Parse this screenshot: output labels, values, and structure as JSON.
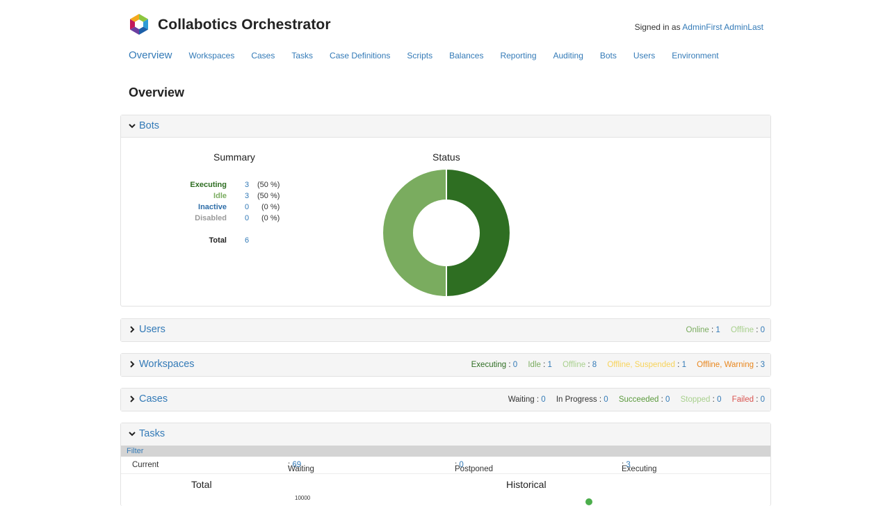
{
  "header": {
    "app_title": "Collabotics Orchestrator",
    "signed_in_prefix": "Signed in as",
    "user_name": "AdminFirst AdminLast"
  },
  "nav": {
    "items": [
      {
        "label": "Overview",
        "active": true
      },
      {
        "label": "Workspaces"
      },
      {
        "label": "Cases"
      },
      {
        "label": "Tasks"
      },
      {
        "label": "Case Definitions"
      },
      {
        "label": "Scripts"
      },
      {
        "label": "Balances"
      },
      {
        "label": "Reporting"
      },
      {
        "label": "Auditing"
      },
      {
        "label": "Bots"
      },
      {
        "label": "Users"
      },
      {
        "label": "Environment"
      }
    ]
  },
  "page_title": "Overview",
  "colors": {
    "executing": "#2e6e22",
    "idle": "#7aac5f",
    "inactive": "#2f6ea8",
    "disabled": "#9a9a9a",
    "offline": "#a8d08d",
    "suspended": "#f7d35a",
    "warning": "#e8861d",
    "failed": "#d9534f",
    "link": "#337ab7"
  },
  "bots": {
    "title": "Bots",
    "summary_title": "Summary",
    "status_title": "Status",
    "rows": [
      {
        "label": "Executing",
        "value": "3",
        "percent": "(50 %)"
      },
      {
        "label": "Idle",
        "value": "3",
        "percent": "(50 %)"
      },
      {
        "label": "Inactive",
        "value": "0",
        "percent": "(0 %)"
      },
      {
        "label": "Disabled",
        "value": "0",
        "percent": "(0 %)"
      }
    ],
    "total_label": "Total",
    "total_value": "6",
    "donut": [
      {
        "label": "Executing",
        "value": 3
      },
      {
        "label": "Idle",
        "value": 3
      }
    ]
  },
  "users": {
    "title": "Users",
    "stats": [
      {
        "label": "Online",
        "value": "1"
      },
      {
        "label": "Offline",
        "value": "0"
      }
    ]
  },
  "workspaces": {
    "title": "Workspaces",
    "stats": [
      {
        "label": "Executing",
        "value": "0"
      },
      {
        "label": "Idle",
        "value": "1"
      },
      {
        "label": "Offline",
        "value": "8"
      },
      {
        "label": "Offline, Suspended",
        "value": "1"
      },
      {
        "label": "Offline, Warning",
        "value": "3"
      }
    ]
  },
  "cases": {
    "title": "Cases",
    "stats": [
      {
        "label": "Waiting",
        "value": "0"
      },
      {
        "label": "In Progress",
        "value": "0"
      },
      {
        "label": "Succeeded",
        "value": "0"
      },
      {
        "label": "Stopped",
        "value": "0"
      },
      {
        "label": "Failed",
        "value": "0"
      }
    ]
  },
  "tasks": {
    "title": "Tasks",
    "filter_label": "Filter",
    "current_label": "Current",
    "waiting_label": "Waiting",
    "waiting_value": "69",
    "postponed_label": "Postponed",
    "postponed_value": "0",
    "executing_label": "Executing",
    "executing_value": "3",
    "total_title": "Total",
    "historical_title": "Historical",
    "axis_top_tick": "10000"
  }
}
